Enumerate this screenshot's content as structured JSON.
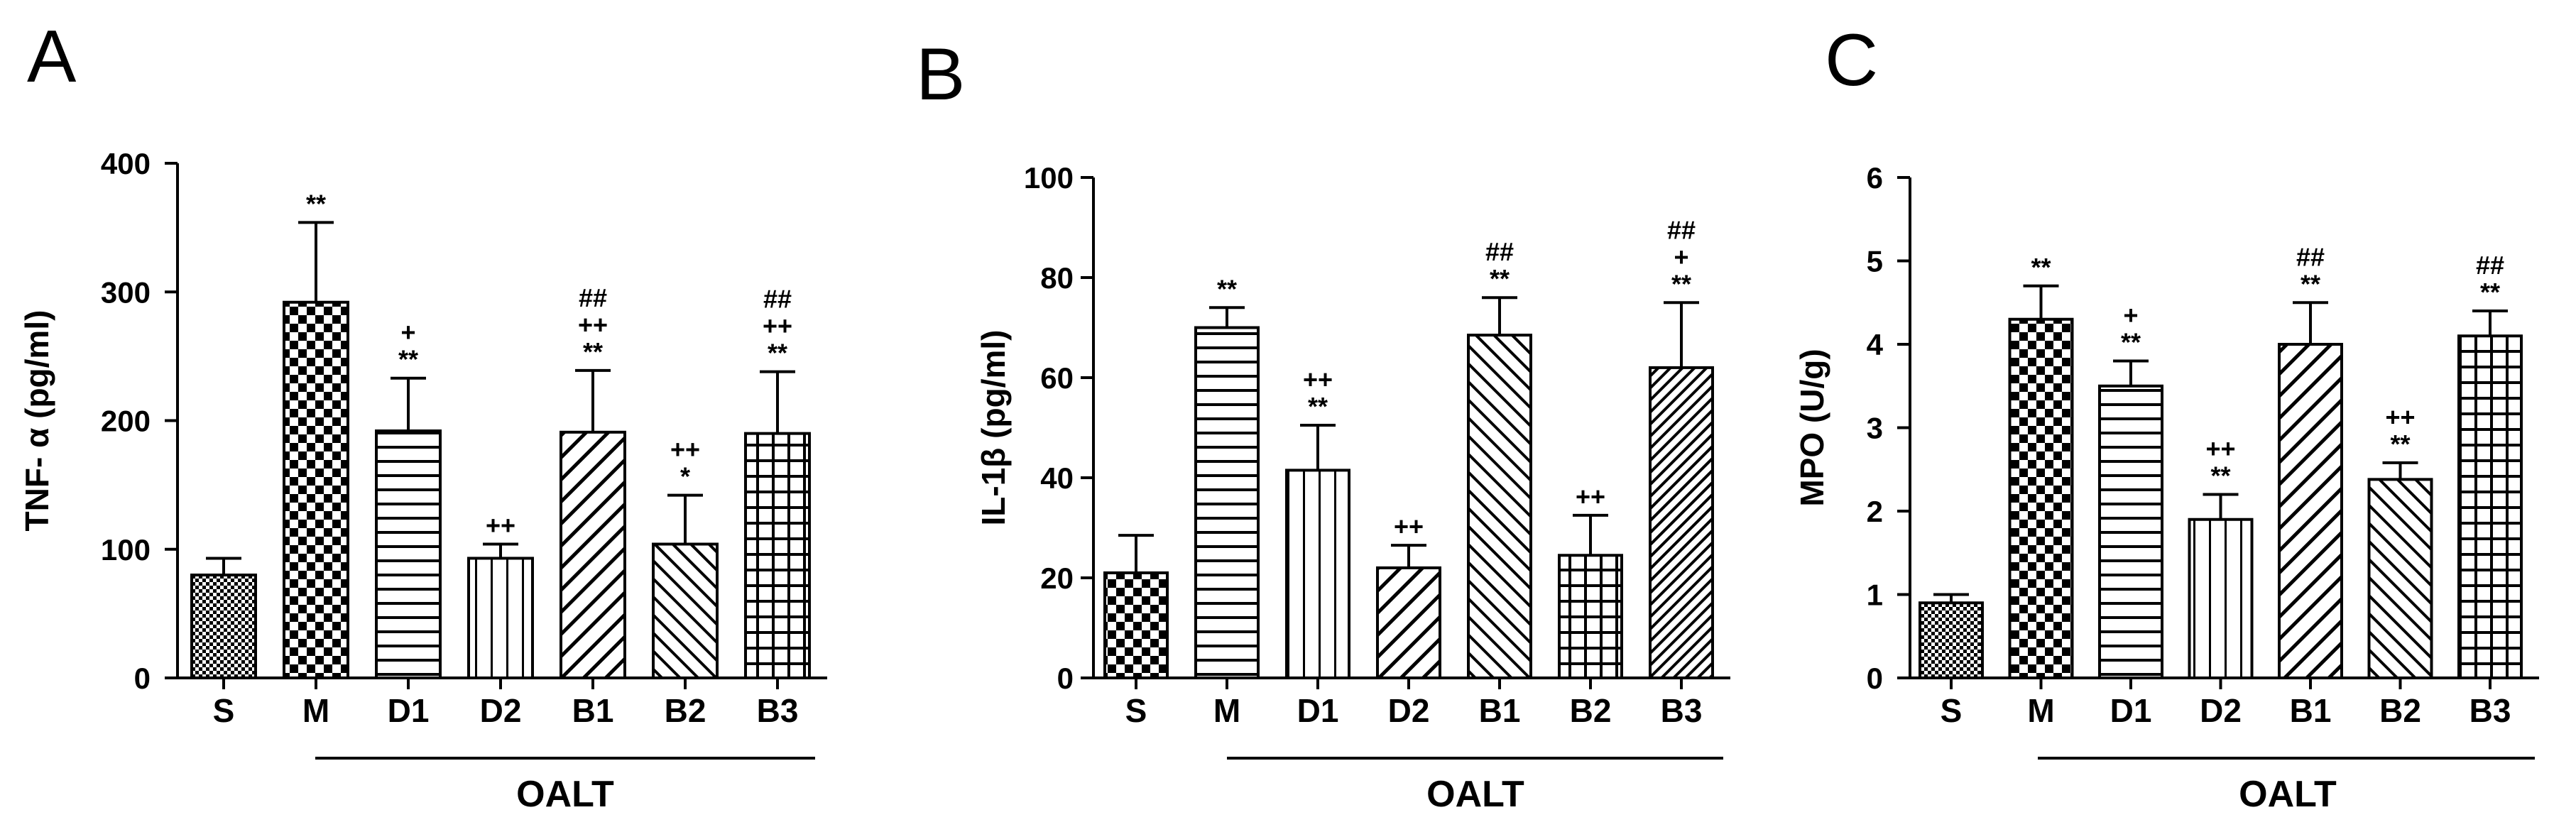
{
  "chart_data": [
    {
      "panel": "A",
      "type": "bar",
      "ylabel": "TNF- α (pg/ml)",
      "ylim": [
        0,
        400
      ],
      "yticks": [
        0,
        100,
        200,
        300,
        400
      ],
      "categories": [
        "S",
        "M",
        "D1",
        "D2",
        "B1",
        "B2",
        "B3"
      ],
      "values": [
        80,
        292,
        192,
        93,
        191,
        104,
        190
      ],
      "errors": [
        13,
        62,
        41,
        11,
        48,
        38,
        48
      ],
      "significance": [
        [],
        [
          "**"
        ],
        [
          "+",
          "**"
        ],
        [
          "++"
        ],
        [
          "##",
          "++",
          "**"
        ],
        [
          "++",
          "*"
        ],
        [
          "##",
          "++",
          "**"
        ]
      ],
      "patterns": [
        "fine-check",
        "checker",
        "hlines",
        "vlines",
        "diag-fwd",
        "diag-back",
        "grid"
      ],
      "group_label": "OALT",
      "group_from": "M",
      "group_to": "B3"
    },
    {
      "panel": "B",
      "type": "bar",
      "ylabel": "IL-1β (pg/ml)",
      "ylim": [
        0,
        100
      ],
      "yticks": [
        0,
        20,
        40,
        60,
        80,
        100
      ],
      "categories": [
        "S",
        "M",
        "D1",
        "D2",
        "B1",
        "B2",
        "B3"
      ],
      "values": [
        21,
        70,
        41.5,
        22,
        68.5,
        24.5,
        62
      ],
      "errors": [
        7.5,
        4,
        9,
        4.5,
        7.5,
        8,
        13
      ],
      "significance": [
        [],
        [
          "**"
        ],
        [
          "++",
          "**"
        ],
        [
          "++"
        ],
        [
          "##",
          "**"
        ],
        [
          "++"
        ],
        [
          "##",
          "+",
          "**"
        ]
      ],
      "patterns": [
        "checker",
        "hlines",
        "vlines",
        "diag-fwd",
        "diag-back",
        "grid",
        "diag-dense"
      ],
      "group_label": "OALT",
      "group_from": "M",
      "group_to": "B3"
    },
    {
      "panel": "C",
      "type": "bar",
      "ylabel": "MPO (U/g)",
      "ylim": [
        0,
        6
      ],
      "yticks": [
        0,
        1,
        2,
        3,
        4,
        5,
        6
      ],
      "categories": [
        "S",
        "M",
        "D1",
        "D2",
        "B1",
        "B2",
        "B3"
      ],
      "values": [
        0.9,
        4.3,
        3.5,
        1.9,
        4.0,
        2.38,
        4.1
      ],
      "errors": [
        0.1,
        0.4,
        0.3,
        0.3,
        0.5,
        0.2,
        0.3
      ],
      "significance": [
        [],
        [
          "**"
        ],
        [
          "+",
          "**"
        ],
        [
          "++",
          "**"
        ],
        [
          "##",
          "**"
        ],
        [
          "++",
          "**"
        ],
        [
          "##",
          "**"
        ]
      ],
      "patterns": [
        "fine-check",
        "checker",
        "hlines",
        "vlines",
        "diag-fwd",
        "diag-back",
        "grid"
      ],
      "group_label": "OALT",
      "group_from": "M",
      "group_to": "B3"
    }
  ]
}
